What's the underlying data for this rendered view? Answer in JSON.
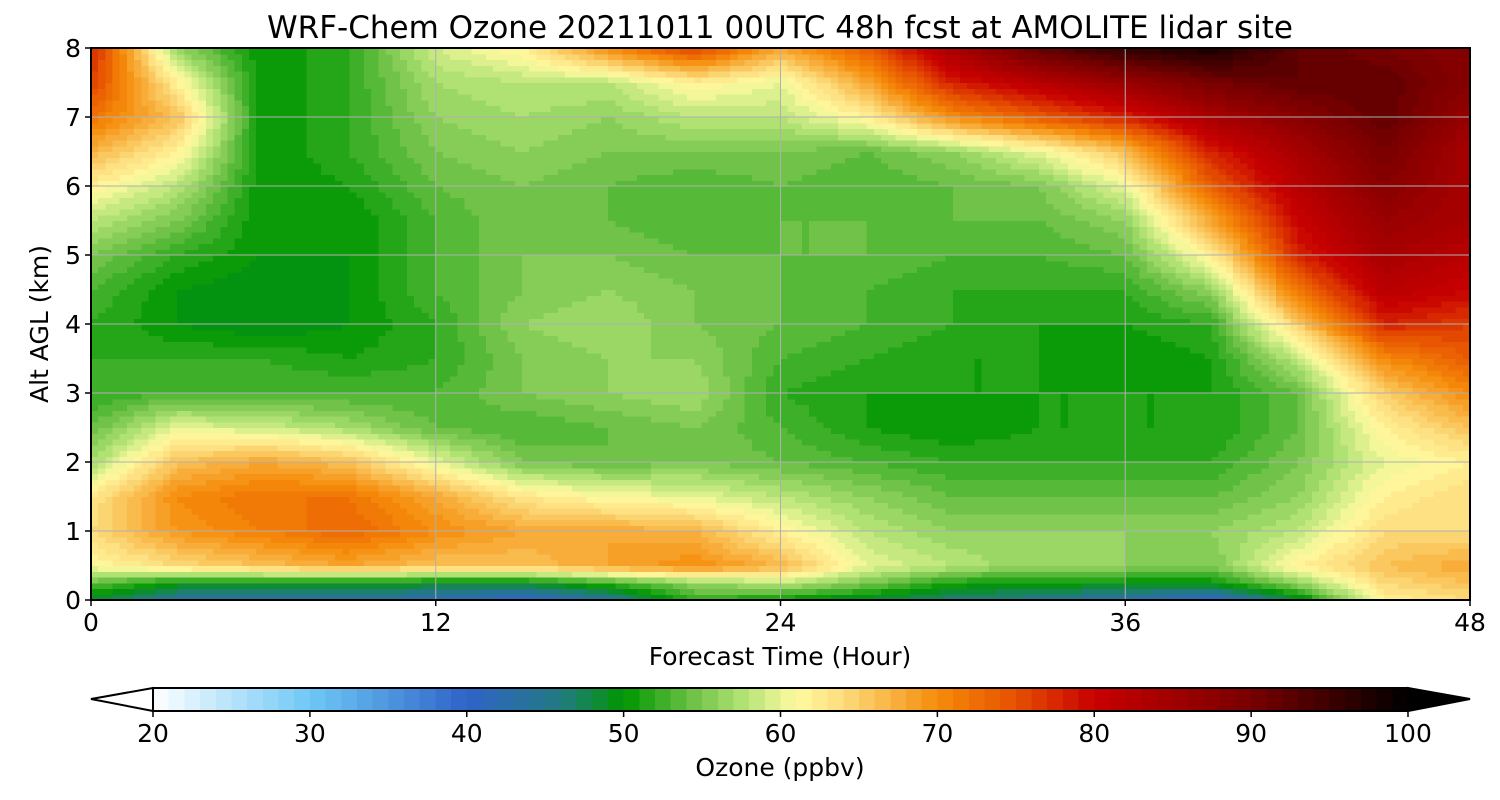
{
  "chart_data": {
    "type": "heatmap",
    "title": "WRF-Chem Ozone  20211011 00UTC 48h fcst at AMOLITE lidar site",
    "xlabel": "Forecast Time (Hour)",
    "ylabel": "Alt AGL (km)",
    "xlim": [
      0,
      48
    ],
    "ylim": [
      0,
      8
    ],
    "x_ticks": [
      "0",
      "12",
      "24",
      "36",
      "48"
    ],
    "y_ticks": [
      "0",
      "1",
      "2",
      "3",
      "4",
      "5",
      "6",
      "7",
      "8"
    ],
    "grid": true,
    "x": [
      0,
      3,
      6,
      9,
      12,
      15,
      18,
      21,
      24,
      27,
      30,
      33,
      36,
      39,
      42,
      45,
      48
    ],
    "y": [
      0,
      0.25,
      0.5,
      1,
      1.5,
      2,
      2.5,
      3,
      3.5,
      4,
      4.5,
      5,
      5.5,
      6,
      6.5,
      7,
      7.5,
      8
    ],
    "z_rows": [
      [
        48,
        44,
        43,
        44,
        42,
        40,
        44,
        52,
        50,
        48,
        46,
        45,
        43,
        40,
        48,
        62,
        64
      ],
      [
        54,
        50,
        50,
        50,
        49,
        49,
        52,
        56,
        58,
        55,
        51,
        50,
        50,
        50,
        56,
        64,
        66
      ],
      [
        61,
        64,
        66,
        68,
        66,
        66,
        68,
        70,
        67,
        60,
        58,
        56,
        56,
        55,
        62,
        66,
        68
      ],
      [
        64,
        69,
        71,
        73,
        70,
        68,
        68,
        67,
        62,
        58,
        56,
        56,
        56,
        56,
        58,
        64,
        64
      ],
      [
        63,
        70,
        72,
        72,
        68,
        63,
        61,
        60,
        58,
        56,
        54,
        54,
        54,
        54,
        56,
        62,
        64
      ],
      [
        57,
        66,
        68,
        66,
        60,
        55,
        54,
        55,
        54,
        53,
        52,
        52,
        52,
        52,
        55,
        60,
        62
      ],
      [
        54,
        60,
        59,
        57,
        54,
        53,
        54,
        55,
        53,
        51,
        50,
        51,
        51,
        51,
        54,
        62,
        66
      ],
      [
        52,
        53,
        53,
        53,
        53,
        55,
        56,
        57,
        52,
        51,
        51,
        51,
        51,
        51,
        54,
        65,
        70
      ],
      [
        52,
        52,
        52,
        51,
        52,
        55,
        56,
        56,
        53,
        52,
        51,
        51,
        50,
        51,
        58,
        70,
        74
      ],
      [
        52,
        50,
        49,
        50,
        52,
        56,
        57,
        55,
        54,
        53,
        52,
        51,
        51,
        52,
        65,
        78,
        76
      ],
      [
        53,
        50,
        49,
        50,
        53,
        55,
        56,
        55,
        54,
        53,
        52,
        52,
        52,
        56,
        72,
        82,
        80
      ],
      [
        55,
        52,
        50,
        50,
        53,
        55,
        55,
        54,
        54,
        54,
        53,
        53,
        54,
        62,
        78,
        84,
        82
      ],
      [
        58,
        55,
        50,
        50,
        53,
        55,
        54,
        53,
        54,
        54,
        54,
        54,
        56,
        68,
        80,
        86,
        84
      ],
      [
        62,
        58,
        50,
        51,
        54,
        55,
        54,
        53,
        54,
        53,
        54,
        55,
        60,
        74,
        82,
        88,
        84
      ],
      [
        67,
        62,
        50,
        52,
        55,
        56,
        55,
        55,
        55,
        54,
        56,
        60,
        66,
        78,
        84,
        90,
        84
      ],
      [
        72,
        66,
        50,
        52,
        56,
        57,
        56,
        58,
        58,
        62,
        70,
        74,
        78,
        84,
        88,
        92,
        86
      ],
      [
        76,
        62,
        50,
        52,
        57,
        58,
        58,
        62,
        60,
        68,
        78,
        82,
        86,
        90,
        92,
        92,
        88
      ],
      [
        78,
        56,
        50,
        52,
        59,
        62,
        70,
        76,
        68,
        74,
        84,
        92,
        96,
        98,
        92,
        90,
        88
      ]
    ],
    "colorbar": {
      "label": "Ozone  (ppbv)",
      "min": 20,
      "max": 100,
      "step": 1,
      "extend": "both",
      "ticks": [
        "20",
        "30",
        "40",
        "50",
        "60",
        "70",
        "80",
        "90",
        "100"
      ],
      "colors": [
        {
          "v": 20,
          "c": "#ffffff"
        },
        {
          "v": 30,
          "c": "#6ec8f5"
        },
        {
          "v": 40,
          "c": "#2f63c8"
        },
        {
          "v": 46,
          "c": "#227a82"
        },
        {
          "v": 50,
          "c": "#009600"
        },
        {
          "v": 55,
          "c": "#7cc850"
        },
        {
          "v": 58,
          "c": "#b9e67a"
        },
        {
          "v": 61,
          "c": "#fffaa0"
        },
        {
          "v": 64,
          "c": "#fddc7c"
        },
        {
          "v": 70,
          "c": "#f58c0a"
        },
        {
          "v": 75,
          "c": "#e65000"
        },
        {
          "v": 80,
          "c": "#c80000"
        },
        {
          "v": 90,
          "c": "#780000"
        },
        {
          "v": 100,
          "c": "#000000"
        }
      ]
    }
  }
}
